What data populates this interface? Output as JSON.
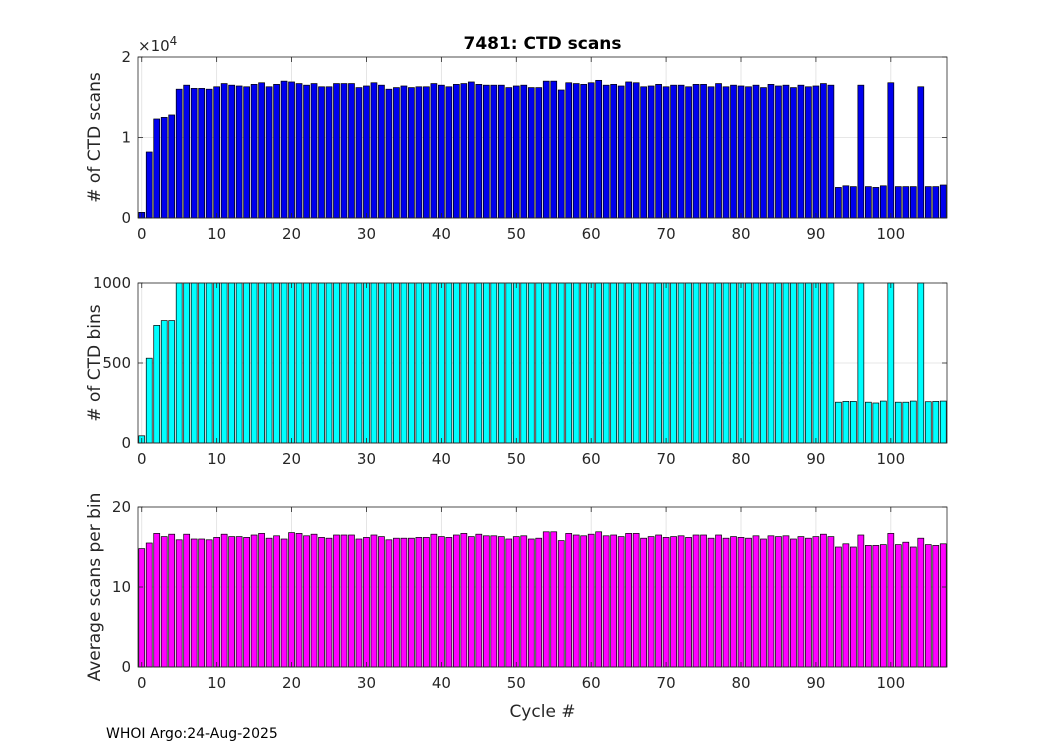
{
  "footer": "WHOI Argo:24-Aug-2025",
  "chart_data": [
    {
      "type": "bar",
      "title": "7481: CTD scans",
      "xlabel": "",
      "ylabel": "# of CTD scans",
      "color": "#0000ee",
      "xlim": [
        -0.5,
        107.5
      ],
      "ylim": [
        0,
        20000
      ],
      "yticks": [
        0,
        10000,
        20000
      ],
      "ytick_labels": [
        "0",
        "1",
        "2"
      ],
      "y_exponent_label": "×10",
      "y_exponent_power": "4",
      "xticks": [
        0,
        10,
        20,
        30,
        40,
        50,
        60,
        70,
        80,
        90,
        100
      ],
      "xtick_labels": [
        "0",
        "10",
        "20",
        "30",
        "40",
        "50",
        "60",
        "70",
        "80",
        "90",
        "100"
      ],
      "grid": true,
      "x": [
        0,
        1,
        2,
        3,
        4,
        5,
        6,
        7,
        8,
        9,
        10,
        11,
        12,
        13,
        14,
        15,
        16,
        17,
        18,
        19,
        20,
        21,
        22,
        23,
        24,
        25,
        26,
        27,
        28,
        29,
        30,
        31,
        32,
        33,
        34,
        35,
        36,
        37,
        38,
        39,
        40,
        41,
        42,
        43,
        44,
        45,
        46,
        47,
        48,
        49,
        50,
        51,
        52,
        53,
        54,
        55,
        56,
        57,
        58,
        59,
        60,
        61,
        62,
        63,
        64,
        65,
        66,
        67,
        68,
        69,
        70,
        71,
        72,
        73,
        74,
        75,
        76,
        77,
        78,
        79,
        80,
        81,
        82,
        83,
        84,
        85,
        86,
        87,
        88,
        89,
        90,
        91,
        92,
        93,
        94,
        95,
        96,
        97,
        98,
        99,
        100,
        101,
        102,
        103,
        104,
        105,
        106,
        107
      ],
      "values": [
        700,
        8200,
        12300,
        12500,
        12800,
        16000,
        16500,
        16100,
        16100,
        16000,
        16300,
        16700,
        16500,
        16400,
        16300,
        16600,
        16800,
        16300,
        16600,
        17000,
        16900,
        16700,
        16500,
        16700,
        16300,
        16300,
        16700,
        16700,
        16700,
        16200,
        16400,
        16800,
        16500,
        16000,
        16200,
        16400,
        16200,
        16300,
        16300,
        16700,
        16500,
        16300,
        16600,
        16700,
        16900,
        16600,
        16500,
        16500,
        16500,
        16200,
        16400,
        16500,
        16200,
        16200,
        17000,
        17000,
        15900,
        16800,
        16700,
        16600,
        16800,
        17100,
        16500,
        16600,
        16400,
        16900,
        16800,
        16300,
        16400,
        16600,
        16300,
        16500,
        16500,
        16300,
        16600,
        16600,
        16300,
        16700,
        16300,
        16500,
        16400,
        16300,
        16500,
        16200,
        16600,
        16400,
        16500,
        16200,
        16500,
        16300,
        16400,
        16700,
        16500,
        3800,
        4000,
        3900,
        16500,
        3900,
        3800,
        4000,
        16800,
        3900,
        3900,
        3900,
        16300,
        3900,
        3900,
        4100
      ]
    },
    {
      "type": "bar",
      "title": "",
      "xlabel": "",
      "ylabel": "# of CTD bins",
      "color": "#00ffff",
      "xlim": [
        -0.5,
        107.5
      ],
      "ylim": [
        0,
        1000
      ],
      "yticks": [
        0,
        500,
        1000
      ],
      "ytick_labels": [
        "0",
        "500",
        "1000"
      ],
      "xticks": [
        0,
        10,
        20,
        30,
        40,
        50,
        60,
        70,
        80,
        90,
        100
      ],
      "xtick_labels": [
        "0",
        "10",
        "20",
        "30",
        "40",
        "50",
        "60",
        "70",
        "80",
        "90",
        "100"
      ],
      "grid": true,
      "x": [
        0,
        1,
        2,
        3,
        4,
        5,
        6,
        7,
        8,
        9,
        10,
        11,
        12,
        13,
        14,
        15,
        16,
        17,
        18,
        19,
        20,
        21,
        22,
        23,
        24,
        25,
        26,
        27,
        28,
        29,
        30,
        31,
        32,
        33,
        34,
        35,
        36,
        37,
        38,
        39,
        40,
        41,
        42,
        43,
        44,
        45,
        46,
        47,
        48,
        49,
        50,
        51,
        52,
        53,
        54,
        55,
        56,
        57,
        58,
        59,
        60,
        61,
        62,
        63,
        64,
        65,
        66,
        67,
        68,
        69,
        70,
        71,
        72,
        73,
        74,
        75,
        76,
        77,
        78,
        79,
        80,
        81,
        82,
        83,
        84,
        85,
        86,
        87,
        88,
        89,
        90,
        91,
        92,
        93,
        94,
        95,
        96,
        97,
        98,
        99,
        100,
        101,
        102,
        103,
        104,
        105,
        106,
        107
      ],
      "values": [
        45,
        530,
        735,
        765,
        765,
        1000,
        1000,
        1000,
        1000,
        1000,
        1000,
        1000,
        1000,
        1000,
        1000,
        1000,
        1000,
        1000,
        1000,
        1000,
        1000,
        1000,
        1000,
        1000,
        1000,
        1000,
        1000,
        1000,
        1000,
        1000,
        1000,
        1000,
        1000,
        1000,
        1000,
        1000,
        1000,
        1000,
        1000,
        1000,
        1000,
        1000,
        1000,
        1000,
        1000,
        1000,
        1000,
        1000,
        1000,
        1000,
        1000,
        1000,
        1000,
        1000,
        1000,
        1000,
        1000,
        1000,
        1000,
        1000,
        1000,
        1000,
        1000,
        1000,
        1000,
        1000,
        1000,
        1000,
        1000,
        1000,
        1000,
        1000,
        1000,
        1000,
        1000,
        1000,
        1000,
        1000,
        1000,
        1000,
        1000,
        1000,
        1000,
        1000,
        1000,
        1000,
        1000,
        1000,
        1000,
        1000,
        1000,
        1000,
        1000,
        255,
        260,
        260,
        1000,
        255,
        250,
        262,
        1000,
        255,
        255,
        262,
        1000,
        258,
        260,
        262
      ]
    },
    {
      "type": "bar",
      "title": "",
      "xlabel": "Cycle #",
      "ylabel": "Average scans per bin",
      "color": "#ff00ff",
      "xlim": [
        -0.5,
        107.5
      ],
      "ylim": [
        0,
        20
      ],
      "yticks": [
        0,
        10,
        20
      ],
      "ytick_labels": [
        "0",
        "10",
        "20"
      ],
      "xticks": [
        0,
        10,
        20,
        30,
        40,
        50,
        60,
        70,
        80,
        90,
        100
      ],
      "xtick_labels": [
        "0",
        "10",
        "20",
        "30",
        "40",
        "50",
        "60",
        "70",
        "80",
        "90",
        "100"
      ],
      "grid": true,
      "x": [
        0,
        1,
        2,
        3,
        4,
        5,
        6,
        7,
        8,
        9,
        10,
        11,
        12,
        13,
        14,
        15,
        16,
        17,
        18,
        19,
        20,
        21,
        22,
        23,
        24,
        25,
        26,
        27,
        28,
        29,
        30,
        31,
        32,
        33,
        34,
        35,
        36,
        37,
        38,
        39,
        40,
        41,
        42,
        43,
        44,
        45,
        46,
        47,
        48,
        49,
        50,
        51,
        52,
        53,
        54,
        55,
        56,
        57,
        58,
        59,
        60,
        61,
        62,
        63,
        64,
        65,
        66,
        67,
        68,
        69,
        70,
        71,
        72,
        73,
        74,
        75,
        76,
        77,
        78,
        79,
        80,
        81,
        82,
        83,
        84,
        85,
        86,
        87,
        88,
        89,
        90,
        91,
        92,
        93,
        94,
        95,
        96,
        97,
        98,
        99,
        100,
        101,
        102,
        103,
        104,
        105,
        106,
        107
      ],
      "values": [
        14.8,
        15.5,
        16.7,
        16.3,
        16.6,
        15.9,
        16.6,
        16.0,
        16.0,
        15.9,
        16.2,
        16.6,
        16.3,
        16.3,
        16.2,
        16.5,
        16.7,
        16.1,
        16.4,
        16.0,
        16.8,
        16.7,
        16.4,
        16.6,
        16.2,
        16.1,
        16.5,
        16.5,
        16.5,
        16.0,
        16.2,
        16.5,
        16.3,
        15.9,
        16.1,
        16.1,
        16.1,
        16.2,
        16.2,
        16.6,
        16.3,
        16.2,
        16.5,
        16.7,
        16.3,
        16.6,
        16.4,
        16.4,
        16.3,
        16.0,
        16.3,
        16.4,
        16.0,
        16.1,
        16.9,
        16.9,
        15.8,
        16.7,
        16.5,
        16.4,
        16.6,
        16.9,
        16.4,
        16.5,
        16.3,
        16.7,
        16.7,
        16.1,
        16.3,
        16.5,
        16.2,
        16.3,
        16.4,
        16.2,
        16.5,
        16.5,
        16.1,
        16.5,
        16.1,
        16.3,
        16.2,
        16.1,
        16.4,
        16.0,
        16.4,
        16.3,
        16.4,
        16.0,
        16.3,
        16.1,
        16.3,
        16.6,
        16.3,
        15.0,
        15.4,
        15.0,
        16.5,
        15.2,
        15.2,
        15.3,
        16.7,
        15.3,
        15.6,
        15.0,
        16.1,
        15.3,
        15.2,
        15.4
      ]
    }
  ]
}
